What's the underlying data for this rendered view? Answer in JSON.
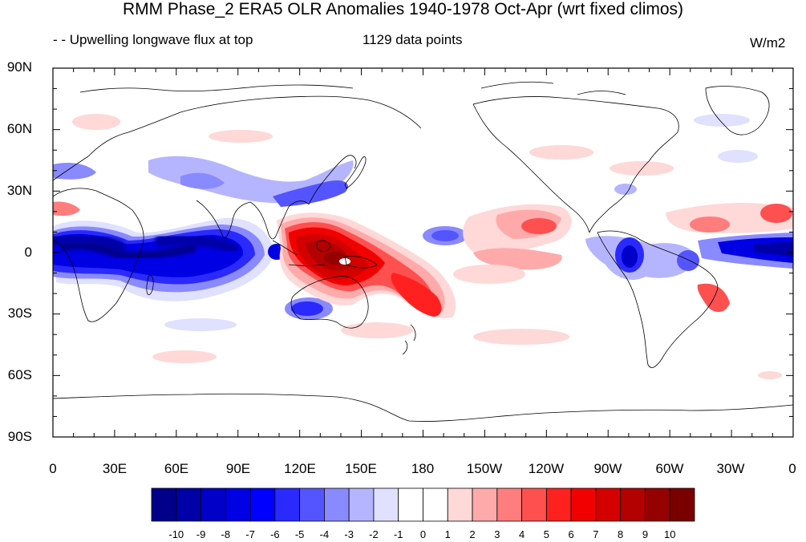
{
  "title": "RMM Phase_2 ERA5 OLR Anomalies 1940-1978 Oct-Apr (wrt fixed climos)",
  "subtitle_left": "- - Upwelling longwave flux at top",
  "subtitle_center": "1129 data points",
  "units": "W/m2",
  "map": {
    "lat_labels": [
      "90N",
      "60N",
      "30N",
      "0",
      "30S",
      "60S",
      "90S"
    ],
    "lon_labels": [
      "0",
      "30E",
      "60E",
      "90E",
      "120E",
      "150E",
      "180",
      "150W",
      "120W",
      "90W",
      "60W",
      "30W",
      "0"
    ]
  },
  "colorbar": {
    "labels": [
      "-10",
      "-9",
      "-8",
      "-7",
      "-6",
      "-5",
      "-4",
      "-3",
      "-2",
      "-1",
      "0",
      "1",
      "2",
      "3",
      "4",
      "5",
      "6",
      "7",
      "8",
      "9",
      "10"
    ],
    "colors": [
      "#00008a",
      "#0000a8",
      "#0000c8",
      "#0000e4",
      "#0000ff",
      "#2a2aff",
      "#5555ff",
      "#8a8aff",
      "#b5b5ff",
      "#e0e0ff",
      "#ffffff",
      "#ffffff",
      "#ffd8d8",
      "#ffaaaa",
      "#ff7d7d",
      "#ff5050",
      "#ff2020",
      "#f20000",
      "#d40000",
      "#b30000",
      "#950000",
      "#7a0000"
    ]
  }
}
